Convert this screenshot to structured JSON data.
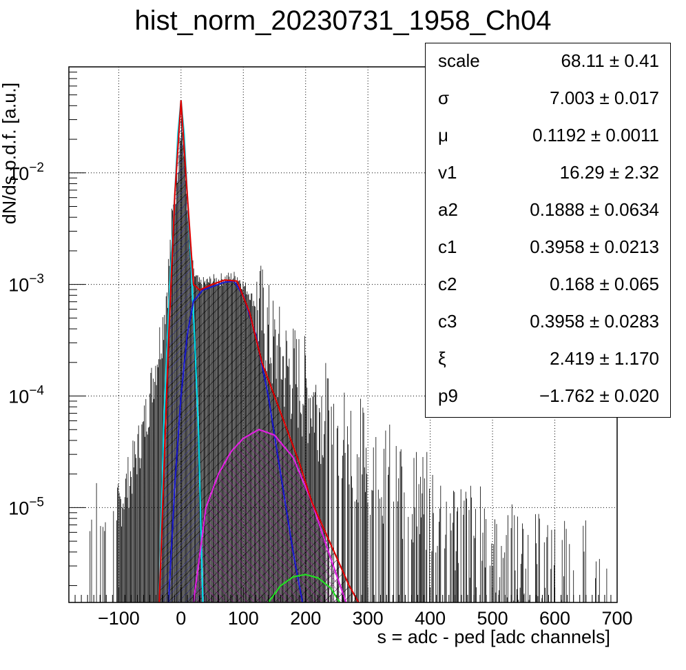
{
  "chart_data": {
    "type": "histogram",
    "title": "hist_norm_20230731_1958_Ch04",
    "xlabel": "s = adc - ped [adc channels]",
    "ylabel": "dN/ds p.d.f. [a.u.]",
    "xlim": [
      -180,
      700
    ],
    "ylim_log10": [
      -5.85,
      -1.05
    ],
    "yscale": "log",
    "grid": true,
    "x_ticks": [
      -100,
      0,
      100,
      200,
      300,
      400,
      500,
      600,
      700
    ],
    "y_ticks": [
      {
        "exp": -2,
        "label": "10",
        "sup": "−2"
      },
      {
        "exp": -3,
        "label": "10",
        "sup": "−3"
      },
      {
        "exp": -4,
        "label": "10",
        "sup": "−4"
      },
      {
        "exp": -5,
        "label": "10",
        "sup": "−5"
      }
    ],
    "histogram_envelope": {
      "x": [
        -100,
        -80,
        -60,
        -40,
        -30,
        -20,
        -10,
        0,
        10,
        20,
        30,
        50,
        70,
        90,
        110,
        130,
        150,
        170,
        200,
        230,
        260,
        300,
        350,
        400,
        450,
        500,
        550,
        600
      ],
      "log10_y": [
        -5.0,
        -4.7,
        -4.3,
        -3.7,
        -3.4,
        -2.9,
        -2.2,
        -1.45,
        -2.3,
        -2.9,
        -3.0,
        -2.97,
        -2.95,
        -2.93,
        -3.08,
        -3.3,
        -3.6,
        -3.75,
        -3.95,
        -4.15,
        -4.35,
        -4.55,
        -4.8,
        -5.0,
        -5.2,
        -5.3,
        -5.5,
        -5.6
      ]
    },
    "series": [
      {
        "color": "#00d8e8",
        "x": [
          -35,
          -28,
          -22,
          -16,
          -10,
          -5,
          0,
          5,
          10,
          16,
          22,
          28,
          35
        ],
        "log10_y": [
          -5.85,
          -4.3,
          -3.5,
          -2.8,
          -2.2,
          -1.65,
          -1.35,
          -1.65,
          -2.2,
          -2.8,
          -3.5,
          -4.3,
          -5.85
        ]
      },
      {
        "color": "#1a1acc",
        "x": [
          -20,
          -10,
          0,
          10,
          20,
          35,
          50,
          70,
          85,
          100,
          120,
          140,
          160,
          180,
          195
        ],
        "log10_y": [
          -5.85,
          -4.8,
          -4.0,
          -3.45,
          -3.15,
          -3.05,
          -3.02,
          -2.98,
          -2.97,
          -3.1,
          -3.45,
          -4.0,
          -4.7,
          -5.4,
          -5.85
        ]
      },
      {
        "color": "#e020e0",
        "x": [
          20,
          40,
          60,
          80,
          100,
          125,
          150,
          180,
          210,
          240,
          265
        ],
        "log10_y": [
          -5.85,
          -5.0,
          -4.7,
          -4.5,
          -4.38,
          -4.3,
          -4.35,
          -4.55,
          -4.95,
          -5.45,
          -5.85
        ]
      },
      {
        "color": "#22dd22",
        "x": [
          140,
          160,
          180,
          200,
          220,
          240,
          255
        ],
        "log10_y": [
          -5.85,
          -5.7,
          -5.62,
          -5.6,
          -5.63,
          -5.72,
          -5.85
        ]
      },
      {
        "color": "#dd0000",
        "x": [
          -35,
          -20,
          -10,
          0,
          10,
          20,
          30,
          50,
          70,
          90,
          110,
          130,
          150,
          170,
          190,
          210,
          230,
          250,
          270,
          285
        ],
        "log10_y": [
          -5.85,
          -3.5,
          -2.2,
          -1.35,
          -2.2,
          -3.0,
          -3.05,
          -3.0,
          -2.96,
          -2.97,
          -3.25,
          -3.7,
          -4.0,
          -4.3,
          -4.6,
          -4.95,
          -5.2,
          -5.45,
          -5.7,
          -5.85
        ]
      }
    ],
    "stats": [
      {
        "name": "scale",
        "value": "68.11 ± 0.41"
      },
      {
        "name": "σ",
        "value": "7.003 ± 0.017"
      },
      {
        "name": "μ",
        "value": "0.1192 ± 0.0011"
      },
      {
        "name": "v1",
        "value": "16.29 ± 2.32"
      },
      {
        "name": "a2",
        "value": "0.1888 ± 0.0634"
      },
      {
        "name": "c1",
        "value": "0.3958 ± 0.0213"
      },
      {
        "name": "c2",
        "value": "0.168 ± 0.065"
      },
      {
        "name": "c3",
        "value": "0.3958 ± 0.0283"
      },
      {
        "name": "ξ",
        "value": "2.419 ± 1.170"
      },
      {
        "name": "p9",
        "value": "−1.762 ± 0.020"
      }
    ]
  }
}
